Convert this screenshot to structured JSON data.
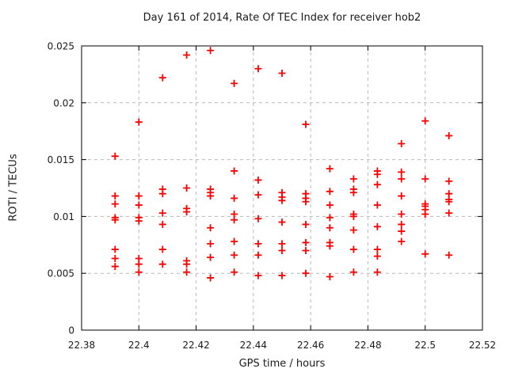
{
  "chart_data": {
    "type": "scatter",
    "title": "Day 161 of 2014, Rate Of TEC Index for receiver hob2",
    "xlabel": "GPS time / hours",
    "ylabel": "ROTI / TECUs",
    "xlim": [
      22.38,
      22.52
    ],
    "ylim": [
      0,
      0.025
    ],
    "x_ticks": [
      22.38,
      22.4,
      22.42,
      22.44,
      22.46,
      22.48,
      22.5,
      22.52
    ],
    "x_tick_labels": [
      "22.38",
      "22.4",
      "22.42",
      "22.44",
      "22.46",
      "22.48",
      "22.5",
      "22.52"
    ],
    "y_ticks": [
      0,
      0.005,
      0.01,
      0.015,
      0.02,
      0.025
    ],
    "y_tick_labels": [
      "0",
      "0.005",
      "0.01",
      "0.015",
      "0.02",
      "0.025"
    ],
    "grid": true,
    "legend": "none",
    "marker_shape": "plus",
    "marker_color": "#ff0000",
    "series": [
      {
        "name": "roti",
        "points": [
          [
            22.3917,
            0.0153
          ],
          [
            22.3917,
            0.0118
          ],
          [
            22.3917,
            0.0111
          ],
          [
            22.3917,
            0.0099
          ],
          [
            22.3917,
            0.0097
          ],
          [
            22.3917,
            0.0071
          ],
          [
            22.3917,
            0.0063
          ],
          [
            22.3917,
            0.0056
          ],
          [
            22.4,
            0.0183
          ],
          [
            22.4,
            0.0118
          ],
          [
            22.4,
            0.011
          ],
          [
            22.4,
            0.0099
          ],
          [
            22.4,
            0.0096
          ],
          [
            22.4,
            0.0063
          ],
          [
            22.4,
            0.0058
          ],
          [
            22.4,
            0.0051
          ],
          [
            22.4083,
            0.0222
          ],
          [
            22.4083,
            0.0124
          ],
          [
            22.4083,
            0.012
          ],
          [
            22.4083,
            0.0103
          ],
          [
            22.4083,
            0.0093
          ],
          [
            22.4083,
            0.0071
          ],
          [
            22.4083,
            0.0058
          ],
          [
            22.4167,
            0.0242
          ],
          [
            22.4167,
            0.0125
          ],
          [
            22.4167,
            0.0107
          ],
          [
            22.4167,
            0.0104
          ],
          [
            22.4167,
            0.0061
          ],
          [
            22.4167,
            0.0058
          ],
          [
            22.4167,
            0.0051
          ],
          [
            22.425,
            0.0246
          ],
          [
            22.425,
            0.0124
          ],
          [
            22.425,
            0.0121
          ],
          [
            22.425,
            0.0118
          ],
          [
            22.425,
            0.009
          ],
          [
            22.425,
            0.0076
          ],
          [
            22.425,
            0.0064
          ],
          [
            22.425,
            0.0046
          ],
          [
            22.4333,
            0.0217
          ],
          [
            22.4333,
            0.014
          ],
          [
            22.4333,
            0.0116
          ],
          [
            22.4333,
            0.0102
          ],
          [
            22.4333,
            0.0097
          ],
          [
            22.4333,
            0.0078
          ],
          [
            22.4333,
            0.0066
          ],
          [
            22.4333,
            0.0051
          ],
          [
            22.4417,
            0.023
          ],
          [
            22.4417,
            0.0132
          ],
          [
            22.4417,
            0.0119
          ],
          [
            22.4417,
            0.0098
          ],
          [
            22.4417,
            0.0076
          ],
          [
            22.4417,
            0.0066
          ],
          [
            22.4417,
            0.0048
          ],
          [
            22.45,
            0.0226
          ],
          [
            22.45,
            0.0121
          ],
          [
            22.45,
            0.0117
          ],
          [
            22.45,
            0.0114
          ],
          [
            22.45,
            0.0095
          ],
          [
            22.45,
            0.0076
          ],
          [
            22.45,
            0.007
          ],
          [
            22.45,
            0.0048
          ],
          [
            22.4583,
            0.0181
          ],
          [
            22.4583,
            0.012
          ],
          [
            22.4583,
            0.0116
          ],
          [
            22.4583,
            0.0113
          ],
          [
            22.4583,
            0.0093
          ],
          [
            22.4583,
            0.0077
          ],
          [
            22.4583,
            0.007
          ],
          [
            22.4583,
            0.005
          ],
          [
            22.4667,
            0.0142
          ],
          [
            22.4667,
            0.0122
          ],
          [
            22.4667,
            0.011
          ],
          [
            22.4667,
            0.0099
          ],
          [
            22.4667,
            0.009
          ],
          [
            22.4667,
            0.0077
          ],
          [
            22.4667,
            0.0074
          ],
          [
            22.4667,
            0.0047
          ],
          [
            22.475,
            0.0133
          ],
          [
            22.475,
            0.0124
          ],
          [
            22.475,
            0.0121
          ],
          [
            22.475,
            0.0102
          ],
          [
            22.475,
            0.01
          ],
          [
            22.475,
            0.0088
          ],
          [
            22.475,
            0.0071
          ],
          [
            22.475,
            0.0051
          ],
          [
            22.4833,
            0.014
          ],
          [
            22.4833,
            0.0137
          ],
          [
            22.4833,
            0.0128
          ],
          [
            22.4833,
            0.011
          ],
          [
            22.4833,
            0.0091
          ],
          [
            22.4833,
            0.0071
          ],
          [
            22.4833,
            0.0065
          ],
          [
            22.4833,
            0.0051
          ],
          [
            22.4917,
            0.0164
          ],
          [
            22.4917,
            0.0139
          ],
          [
            22.4917,
            0.0133
          ],
          [
            22.4917,
            0.0118
          ],
          [
            22.4917,
            0.0102
          ],
          [
            22.4917,
            0.0093
          ],
          [
            22.4917,
            0.0087
          ],
          [
            22.4917,
            0.0078
          ],
          [
            22.5,
            0.0184
          ],
          [
            22.5,
            0.0133
          ],
          [
            22.5,
            0.0111
          ],
          [
            22.5,
            0.0109
          ],
          [
            22.5,
            0.0106
          ],
          [
            22.5,
            0.0102
          ],
          [
            22.5,
            0.0067
          ],
          [
            22.5083,
            0.0171
          ],
          [
            22.5083,
            0.0131
          ],
          [
            22.5083,
            0.012
          ],
          [
            22.5083,
            0.0115
          ],
          [
            22.5083,
            0.0113
          ],
          [
            22.5083,
            0.0103
          ],
          [
            22.5083,
            0.0066
          ]
        ]
      }
    ]
  },
  "colors": {
    "marker": "#ff0000",
    "grid": "#b9b9b9",
    "axis": "#000000",
    "text": "#1a1a1a",
    "background": "#ffffff"
  }
}
